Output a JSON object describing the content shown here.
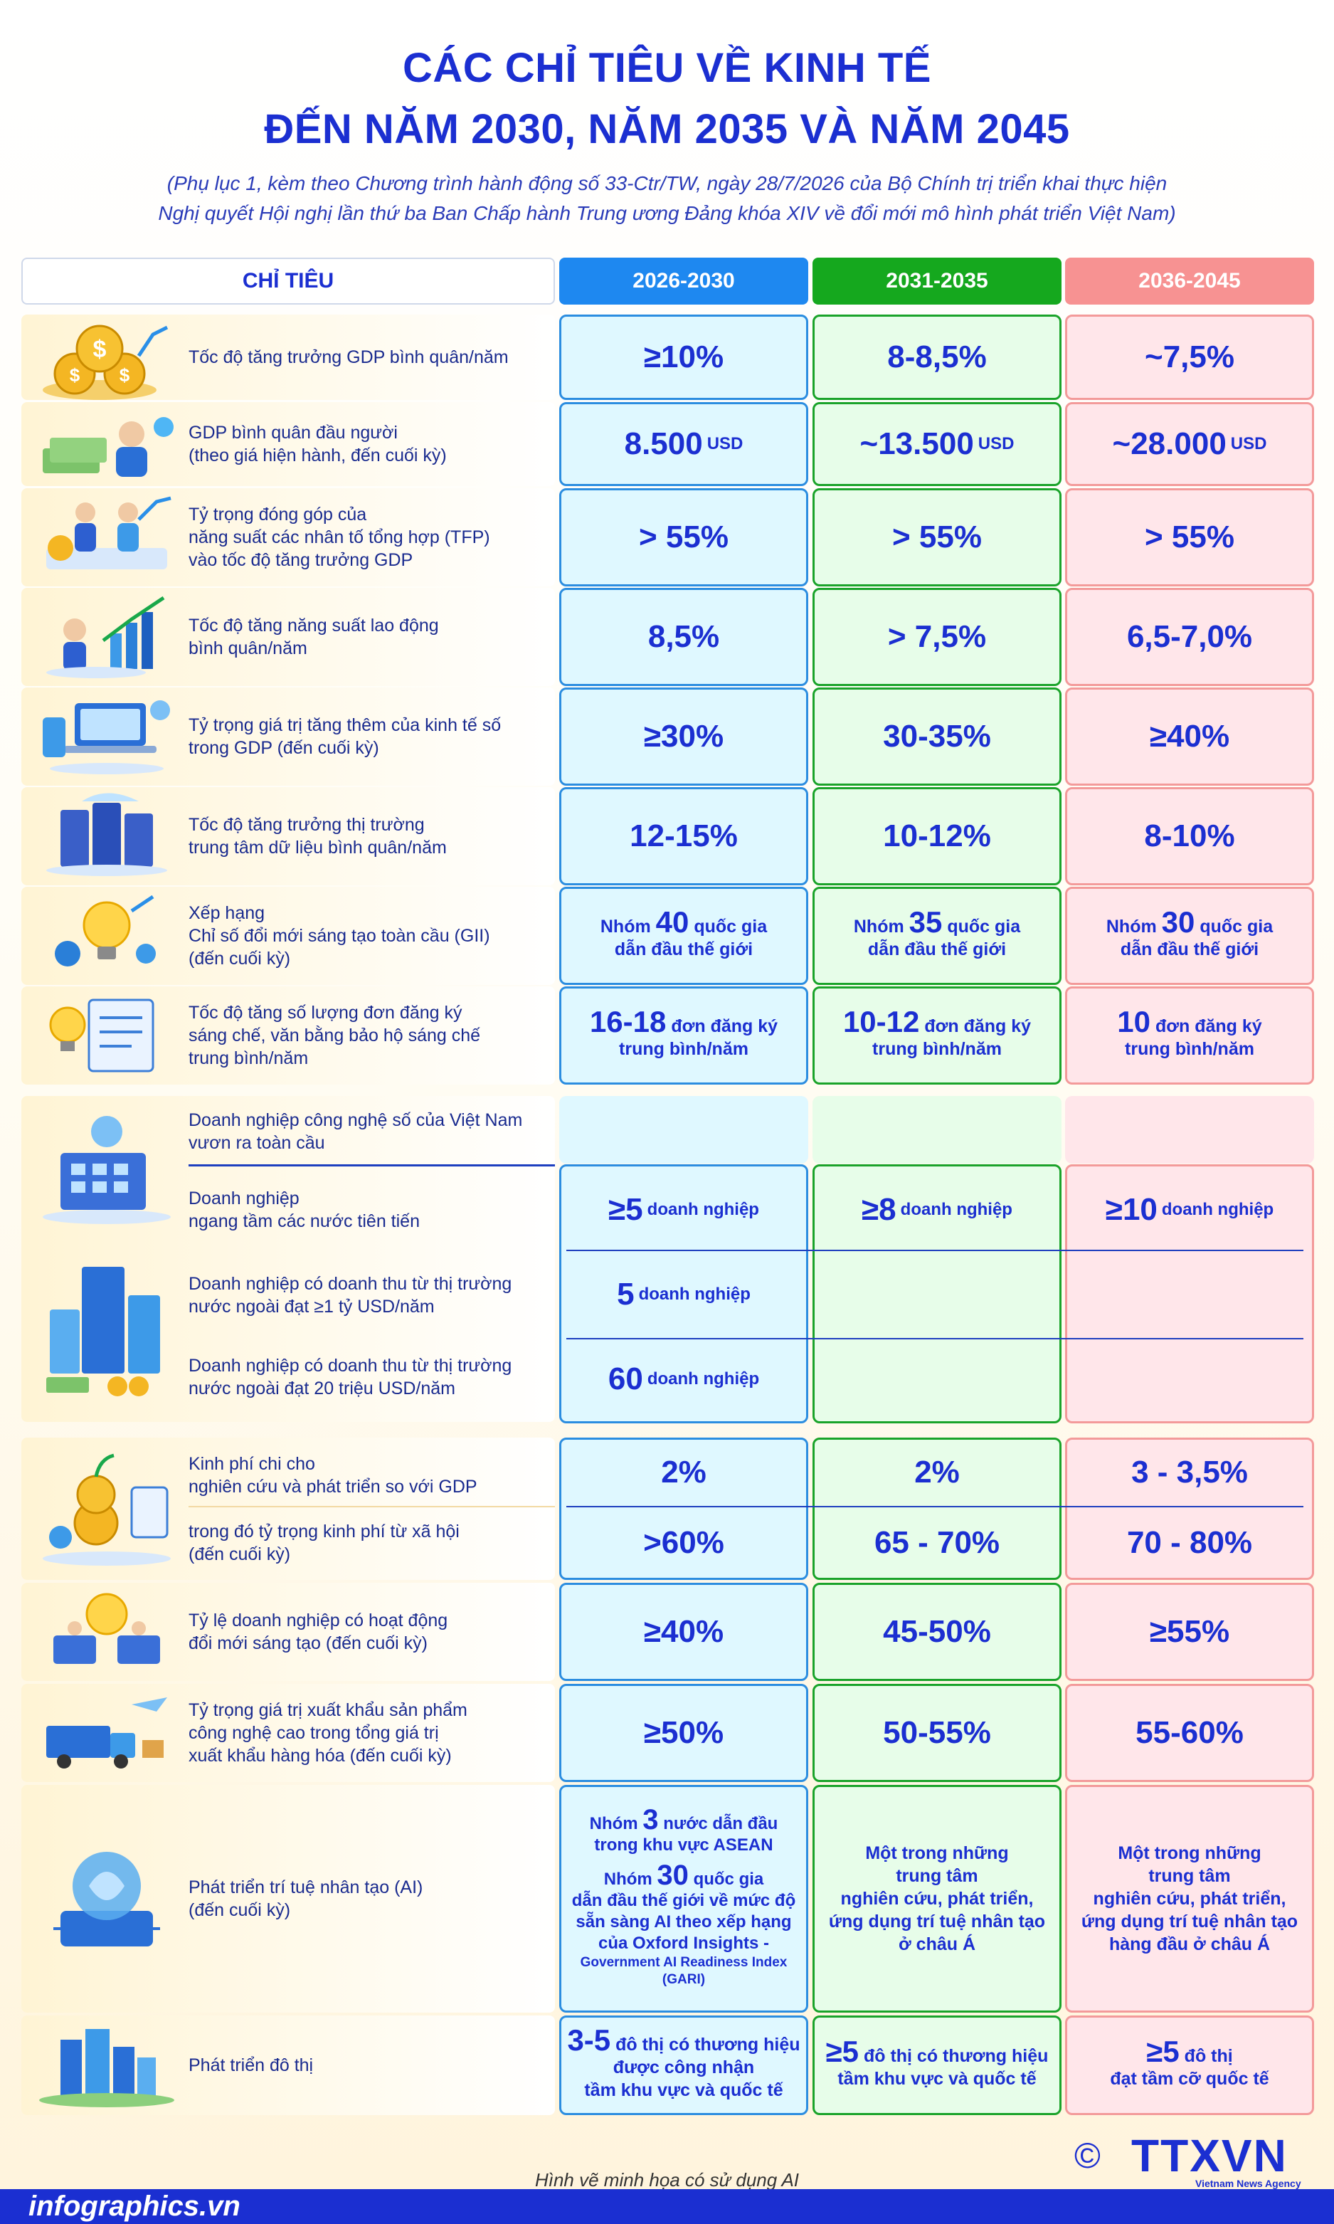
{
  "title": {
    "line1": "CÁC CHỈ TIÊU VỀ KINH TẾ",
    "line2": "ĐẾN NĂM 2030, NĂM 2035 VÀ NĂM 2045"
  },
  "subtitle": {
    "line1": "(Phụ lục 1, kèm theo Chương trình hành động số 33-Ctr/TW, ngày 28/7/2026 của Bộ Chính trị triển khai thực hiện",
    "line2": "Nghị quyết Hội nghị lần thứ ba Ban Chấp hành Trung ương Đảng khóa XIV về đổi mới mô hình phát triển Việt Nam)"
  },
  "header": {
    "indicator": "CHỈ TIÊU",
    "p1": "2026-2030",
    "p2": "2031-2035",
    "p3": "2036-2045"
  },
  "rows": [
    {
      "label": "Tốc độ tăng trưởng GDP bình quân/năm",
      "v1": "≥10%",
      "v2": "8-8,5%",
      "v3": "~7,5%"
    },
    {
      "label": "GDP bình quân đầu người\n(theo giá hiện hành, đến cuối kỳ)",
      "v1": "8.500",
      "v2": "~13.500",
      "v3": "~28.000",
      "unit": "USD"
    },
    {
      "label": "Tỷ trọng đóng góp của\nnăng suất các nhân tố tổng hợp (TFP)\nvào tốc độ tăng trưởng GDP",
      "v1": "> 55%",
      "v2": "> 55%",
      "v3": "> 55%"
    },
    {
      "label": "Tốc độ tăng năng suất lao động\nbình quân/năm",
      "v1": "8,5%",
      "v2": "> 7,5%",
      "v3": "6,5-7,0%"
    },
    {
      "label": "Tỷ trọng giá trị tăng thêm của kinh tế số\ntrong GDP (đến cuối kỳ)",
      "v1": "≥30%",
      "v2": "30-35%",
      "v3": "≥40%"
    },
    {
      "label": "Tốc độ tăng trưởng thị trường\ntrung tâm dữ liệu bình quân/năm",
      "v1": "12-15%",
      "v2": "10-12%",
      "v3": "8-10%"
    },
    {
      "label": "Xếp hạng\nChỉ số đổi mới sáng tạo toàn cầu (GII)\n(đến cuối kỳ)",
      "v1": {
        "pre": "Nhóm",
        "num": "40",
        "post": "quốc gia",
        "l2": "dẫn đầu thế giới"
      },
      "v2": {
        "pre": "Nhóm",
        "num": "35",
        "post": "quốc gia",
        "l2": "dẫn đầu thế giới"
      },
      "v3": {
        "pre": "Nhóm",
        "num": "30",
        "post": "quốc gia",
        "l2": "dẫn đầu thế giới"
      }
    },
    {
      "label": "Tốc độ tăng số lượng đơn đăng ký\nsáng chế, văn bằng bảo hộ sáng chế\ntrung bình/năm",
      "v1": {
        "num": "16-18",
        "post": "đơn đăng ký",
        "l2": "trung bình/năm"
      },
      "v2": {
        "num": "10-12",
        "post": "đơn đăng ký",
        "l2": "trung bình/năm"
      },
      "v3": {
        "num": "10",
        "post": "đơn đăng ký",
        "l2": "trung bình/năm"
      }
    }
  ],
  "digital": {
    "heading": "Doanh nghiệp công nghệ số của Việt Nam\nvươn ra toàn cầu",
    "sub1": {
      "label": "Doanh nghiệp\nngang tầm các nước tiên tiến",
      "v1": "≥5",
      "v2": "≥8",
      "v3": "≥10",
      "unit": "doanh nghiệp"
    },
    "sub2": {
      "label": "Doanh nghiệp có doanh thu từ thị trường\nnước ngoài đạt ≥1 tỷ USD/năm",
      "v1": "5",
      "unit": "doanh nghiệp"
    },
    "sub3": {
      "label": "Doanh nghiệp có doanh thu từ thị trường\nnước ngoài đạt 20 triệu USD/năm",
      "v1": "60",
      "unit": "doanh nghiệp"
    }
  },
  "rnd": {
    "label1": "Kinh phí chi cho\nnghiên cứu và phát triển so với GDP",
    "v1": "2%",
    "v2": "2%",
    "v3": "3 - 3,5%",
    "label2": "trong đó tỷ trọng kinh phí từ xã hội\n(đến cuối kỳ)",
    "w1": ">60%",
    "w2": "65 - 70%",
    "w3": "70 - 80%"
  },
  "rows2": [
    {
      "label": "Tỷ lệ doanh nghiệp có hoạt động\nđổi mới sáng tạo (đến cuối kỳ)",
      "v1": "≥40%",
      "v2": "45-50%",
      "v3": "≥55%"
    },
    {
      "label": "Tỷ trọng giá trị xuất khẩu sản phẩm\ncông nghệ cao trong tổng giá trị\nxuất khẩu hàng hóa (đến cuối kỳ)",
      "v1": "≥50%",
      "v2": "50-55%",
      "v3": "55-60%"
    }
  ],
  "ai": {
    "label": "Phát triển trí tuệ nhân tạo (AI)\n(đến cuối kỳ)",
    "v1a_pre": "Nhóm",
    "v1a_num": "3",
    "v1a_post": "nước dẫn đầu",
    "v1a_l2": "trong khu vực ASEAN",
    "v1b_pre": "Nhóm",
    "v1b_num": "30",
    "v1b_post": "quốc gia",
    "v1b_rest": "dẫn đầu thế giới về mức độ\nsẵn sàng AI theo xếp hạng\ncủa Oxford Insights -",
    "v1b_small": "Government AI Readiness Index\n(GARI)",
    "v2": "Một trong những\ntrung tâm\nnghiên cứu, phát triển,\nứng dụng trí tuệ nhân tạo\nở châu Á",
    "v3": "Một trong những\ntrung tâm\nnghiên cứu, phát triển,\nứng dụng trí tuệ nhân tạo\nhàng đầu ở châu Á"
  },
  "urban": {
    "label": "Phát triển đô thị",
    "v1_num": "3-5",
    "v1_post": "đô thị có thương hiệu",
    "v1_l2": "được công nhận\ntầm khu vực và quốc tế",
    "v2_num": "≥5",
    "v2_post": "đô thị có thương hiệu",
    "v2_l2": "tầm khu vực và quốc tế",
    "v3_num": "≥5",
    "v3_post": "đô thị",
    "v3_l2": "đạt tầm cỡ quốc tế"
  },
  "footer": {
    "note": "Hình vẽ minh họa có sử dụng AI",
    "site": "infographics.vn",
    "copyright": "©",
    "logo": "TTXVN",
    "agency": "Vietnam News Agency"
  },
  "colors": {
    "title": "#1b2fd1",
    "p1": "#1e88f0",
    "p2": "#15a81e",
    "p3": "#f79292"
  }
}
